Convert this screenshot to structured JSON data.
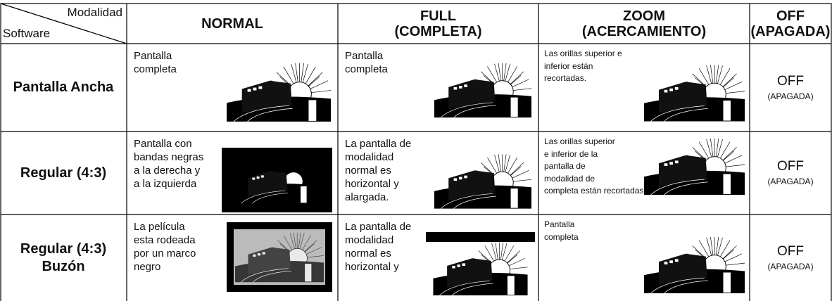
{
  "header": {
    "modalidad": "Modalidad",
    "software": "Software",
    "columns": [
      {
        "lines": [
          "NORMAL"
        ]
      },
      {
        "lines": [
          "FULL",
          "(COMPLETA)"
        ]
      },
      {
        "lines": [
          "ZOOM",
          "(ACERCAMIENTO)"
        ]
      },
      {
        "lines": [
          "OFF",
          "(APAGADA)"
        ]
      }
    ]
  },
  "rows": [
    {
      "label": [
        "Pantalla Ancha"
      ],
      "cells": [
        [
          "Pantalla",
          "completa"
        ],
        [
          "Pantalla",
          "completa"
        ],
        [
          "Las orillas superior e",
          "inferior están",
          "recortadas."
        ],
        [
          "OFF",
          "(APAGADA)"
        ]
      ]
    },
    {
      "label": [
        "Regular (4:3)"
      ],
      "cells": [
        [
          "Pantalla con",
          "bandas negras",
          "a la derecha y",
          "a la izquierda"
        ],
        [
          "La pantalla de",
          "modalidad",
          "normal es",
          "horizontal y",
          "alargada."
        ],
        [
          "Las orillas superior",
          "e inferior de la",
          "pantalla de",
          "modalidad de",
          "completa están recortadas."
        ],
        [
          "OFF",
          "(APAGADA)"
        ]
      ]
    },
    {
      "label": [
        "Regular (4:3)",
        "Buzón"
      ],
      "cells": [
        [
          "La película",
          "esta rodeada",
          "por un marco",
          "negro"
        ],
        [
          "La pantalla de",
          "modalidad",
          "normal es",
          "horizontal y"
        ],
        [
          "Pantalla",
          "completa"
        ],
        [
          "OFF",
          "(APAGADA)"
        ]
      ]
    }
  ]
}
